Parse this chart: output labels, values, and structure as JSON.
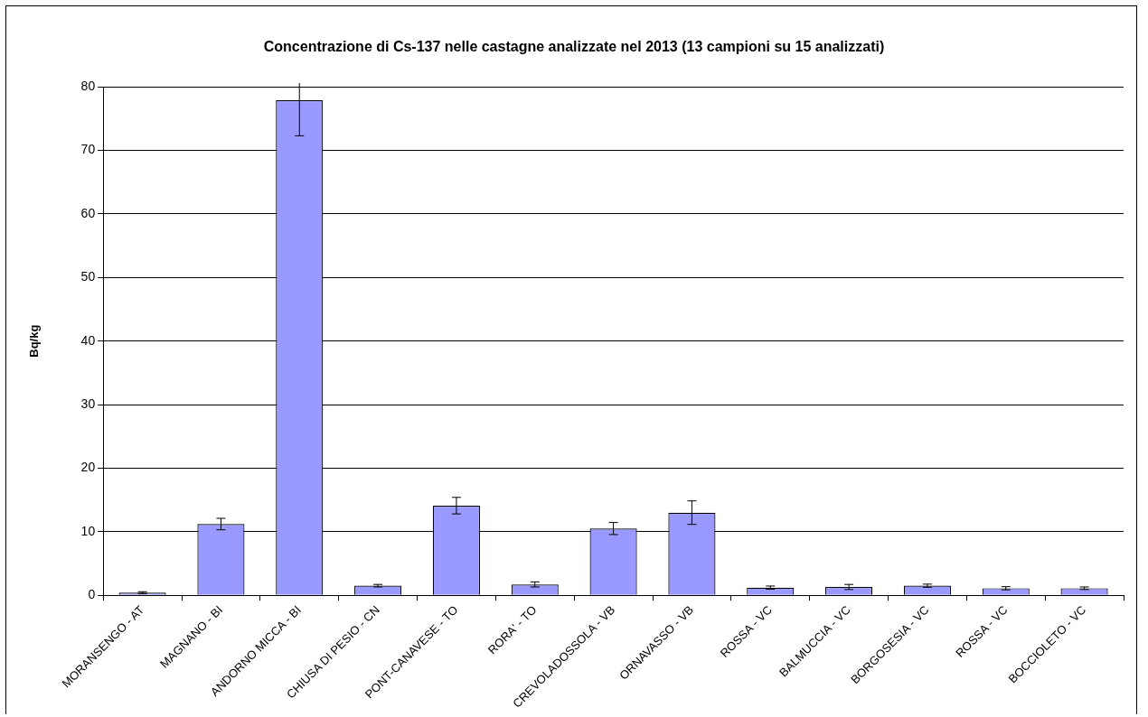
{
  "chart_data": {
    "type": "bar",
    "title": "Concentrazione di Cs-137 nelle castagne analizzate nel 2013 (13 campioni su 15 analizzati)",
    "ylabel": "Bq/kg",
    "categories": [
      "MORANSENGO - AT",
      "MAGNANO - BI",
      "ANDORNO MICCA - BI",
      "CHIUSA DI PESIO - CN",
      "PONT-CANAVESE - TO",
      "RORA' - TO",
      "CREVOLADOSSOLA - VB",
      "ORNAVASSO - VB",
      "ROSSA - VC",
      "BALMUCCIA - VC",
      "BORGOSESIA - VC",
      "ROSSA - VC",
      "BOCCIOLETO - VC"
    ],
    "values": [
      0.4,
      11.2,
      77.9,
      1.5,
      14.1,
      1.7,
      10.5,
      13.0,
      1.2,
      1.3,
      1.5,
      1.1,
      1.1
    ],
    "errors": [
      0.15,
      0.9,
      [
        72.3,
        80.6
      ],
      0.2,
      1.3,
      0.4,
      0.95,
      1.85,
      0.25,
      0.4,
      0.25,
      0.25,
      0.2
    ],
    "color": "#9999ff",
    "ylim": [
      0,
      80
    ],
    "yticks": [
      0,
      10,
      20,
      30,
      40,
      50,
      60,
      70,
      80
    ],
    "grid": "y",
    "legend": false
  }
}
